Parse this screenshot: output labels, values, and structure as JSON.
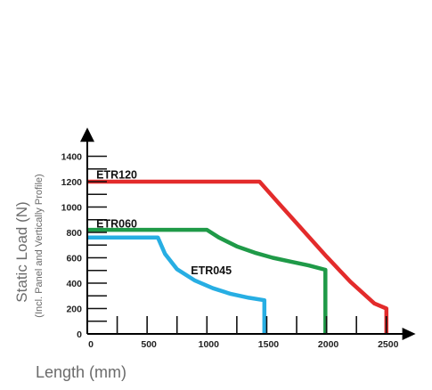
{
  "chart_data": {
    "type": "line",
    "title": "",
    "xlabel": "Length (mm)",
    "ylabel": "Static Load (N)",
    "ylabel_sub": "(Incl. Panel and Vertically Profile)",
    "xlim": [
      0,
      2700
    ],
    "ylim": [
      0,
      1500
    ],
    "x_ticks": [
      0,
      500,
      1000,
      1500,
      2000,
      2500
    ],
    "y_ticks": [
      0,
      200,
      400,
      600,
      800,
      1000,
      1200,
      1400
    ],
    "x_minor_ticks": [
      250,
      750,
      1250,
      1750,
      2250
    ],
    "y_minor_ticks": [
      100,
      300,
      500,
      700,
      900,
      1100,
      1300
    ],
    "legend": "none",
    "grid": false,
    "series": [
      {
        "name": "ETR120",
        "color": "#e32b2b",
        "x": [
          0,
          1440,
          1600,
          1800,
          2000,
          2200,
          2400,
          2500,
          2500
        ],
        "y": [
          1200,
          1200,
          1030,
          820,
          610,
          410,
          240,
          200,
          0
        ],
        "label_at": [
          150,
          1225
        ]
      },
      {
        "name": "ETR060",
        "color": "#1f9a48",
        "x": [
          0,
          1000,
          1100,
          1250,
          1400,
          1550,
          1700,
          1850,
          1990,
          1990
        ],
        "y": [
          820,
          820,
          760,
          690,
          640,
          600,
          570,
          540,
          505,
          0
        ],
        "label_at": [
          150,
          840
        ]
      },
      {
        "name": "ETR045",
        "color": "#27aee3",
        "x": [
          0,
          590,
          650,
          750,
          900,
          1050,
          1200,
          1350,
          1480,
          1480
        ],
        "y": [
          760,
          760,
          630,
          510,
          420,
          360,
          315,
          285,
          265,
          0
        ],
        "label_at": [
          940,
          470
        ]
      }
    ]
  }
}
